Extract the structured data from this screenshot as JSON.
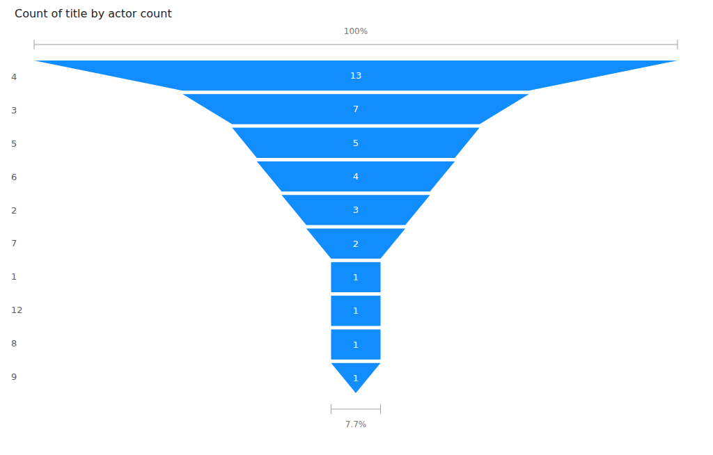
{
  "chart_data": {
    "type": "funnel",
    "title": "Count of title by actor count",
    "categories": [
      "4",
      "3",
      "5",
      "6",
      "2",
      "7",
      "1",
      "12",
      "8",
      "9"
    ],
    "values": [
      13,
      7,
      5,
      4,
      3,
      2,
      1,
      1,
      1,
      1
    ],
    "color": "#118dff",
    "data_labels": true,
    "annotations": [
      "100%",
      "7.7%"
    ]
  }
}
